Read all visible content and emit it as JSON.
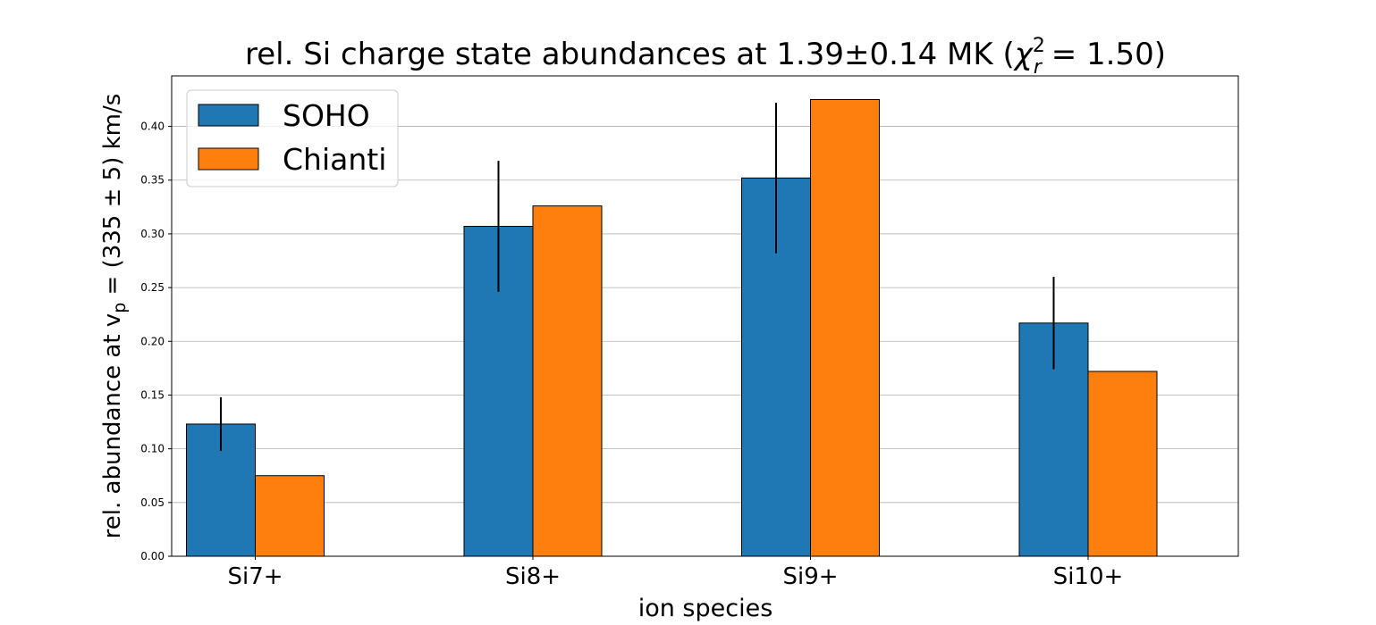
{
  "chart_data": {
    "type": "bar",
    "title": {
      "pre": "rel. Si charge state abundances at 1.39±0.14 MK (",
      "chi": "χ",
      "sup": "2",
      "sub": "r",
      "post": " = 1.50)"
    },
    "xlabel": "ion species",
    "ylabel": {
      "pre": "rel. abundance at v",
      "sub": "p",
      "post": " = (335 ± 5) km/s"
    },
    "categories": [
      "Si7+",
      "Si8+",
      "Si9+",
      "Si10+"
    ],
    "series": [
      {
        "name": "SOHO",
        "color": "#1f77b4",
        "values": [
          0.123,
          0.307,
          0.352,
          0.217
        ],
        "errors": [
          0.025,
          0.061,
          0.07,
          0.043
        ]
      },
      {
        "name": "Chianti",
        "color": "#ff7f0e",
        "values": [
          0.075,
          0.326,
          0.425,
          0.172
        ]
      }
    ],
    "ylim": [
      0,
      0.447
    ],
    "yticks": [
      "0.00",
      "0.05",
      "0.10",
      "0.15",
      "0.20",
      "0.25",
      "0.30",
      "0.35",
      "0.40"
    ],
    "grid": "y",
    "legend_position": "top-left"
  }
}
